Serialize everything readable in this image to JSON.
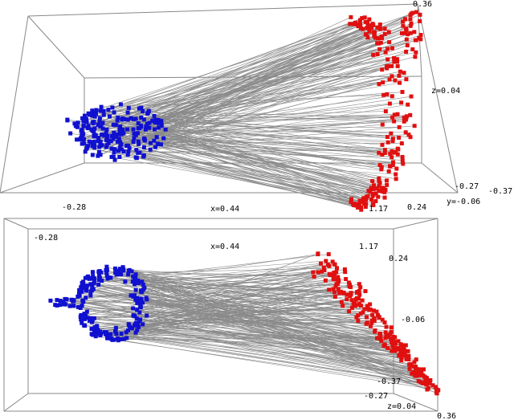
{
  "top_panel": {
    "labels": [
      "0.36",
      "z=0.04",
      "-0.27",
      "-0.37",
      "y=-0.06",
      "-0.28",
      "x=0.44",
      "1.17",
      "0.24"
    ]
  },
  "bottom_panel": {
    "labels": [
      "-0.28",
      "x=0.44",
      "1.17",
      "0.24",
      "-0.06",
      "-0.37",
      "-0.27",
      "z=0.04",
      "0.36"
    ]
  }
}
